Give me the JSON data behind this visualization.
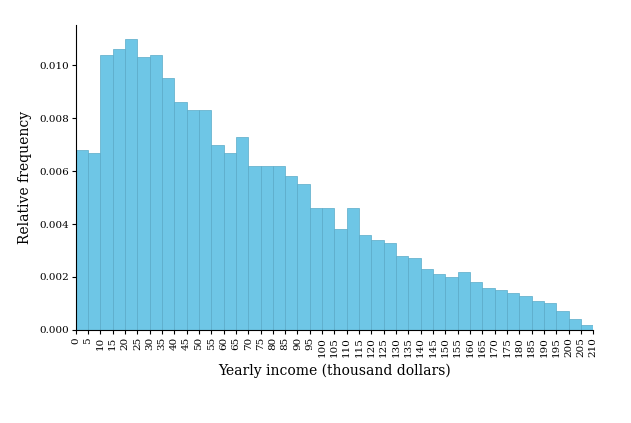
{
  "title": "",
  "xlabel": "Yearly income (thousand dollars)",
  "ylabel": "Relative frequency",
  "bar_color": "#6EC6E6",
  "edge_color": "#5AAAC8",
  "background_color": "#ffffff",
  "ylim": [
    0,
    0.0115
  ],
  "yticks": [
    0.0,
    0.002,
    0.004,
    0.006,
    0.008,
    0.01
  ],
  "bin_starts": [
    0,
    5,
    10,
    15,
    20,
    25,
    30,
    35,
    40,
    45,
    50,
    55,
    60,
    65,
    70,
    75,
    80,
    85,
    90,
    95,
    100,
    105,
    110,
    115,
    120,
    125,
    130,
    135,
    140,
    145,
    150,
    155,
    160,
    165,
    170,
    175,
    180,
    185,
    190,
    195,
    200,
    205
  ],
  "bin_width": 5,
  "heights": [
    0.0068,
    0.0067,
    0.0104,
    0.0106,
    0.011,
    0.0103,
    0.0104,
    0.0095,
    0.0086,
    0.0083,
    0.0083,
    0.007,
    0.0067,
    0.0073,
    0.0062,
    0.0062,
    0.0062,
    0.0058,
    0.0055,
    0.0046,
    0.0046,
    0.0038,
    0.0046,
    0.0036,
    0.0034,
    0.0033,
    0.0028,
    0.0027,
    0.0023,
    0.0021,
    0.002,
    0.0022,
    0.0018,
    0.0016,
    0.0015,
    0.0014,
    0.0013,
    0.0011,
    0.001,
    0.0007,
    0.0004,
    0.0002
  ],
  "xtick_labels": [
    "0",
    "5",
    "10",
    "15",
    "20",
    "25",
    "30",
    "35",
    "40",
    "45",
    "50",
    "55",
    "60",
    "65",
    "70",
    "75",
    "80",
    "85",
    "90",
    "95",
    "100",
    "105",
    "110",
    "115",
    "120",
    "125",
    "130",
    "135",
    "140",
    "145",
    "150",
    "155",
    "160",
    "165",
    "170",
    "175",
    "180",
    "185",
    "190",
    "195",
    "200",
    "205",
    "210"
  ],
  "xlabel_fontsize": 10,
  "ylabel_fontsize": 10,
  "tick_fontsize": 7.5
}
